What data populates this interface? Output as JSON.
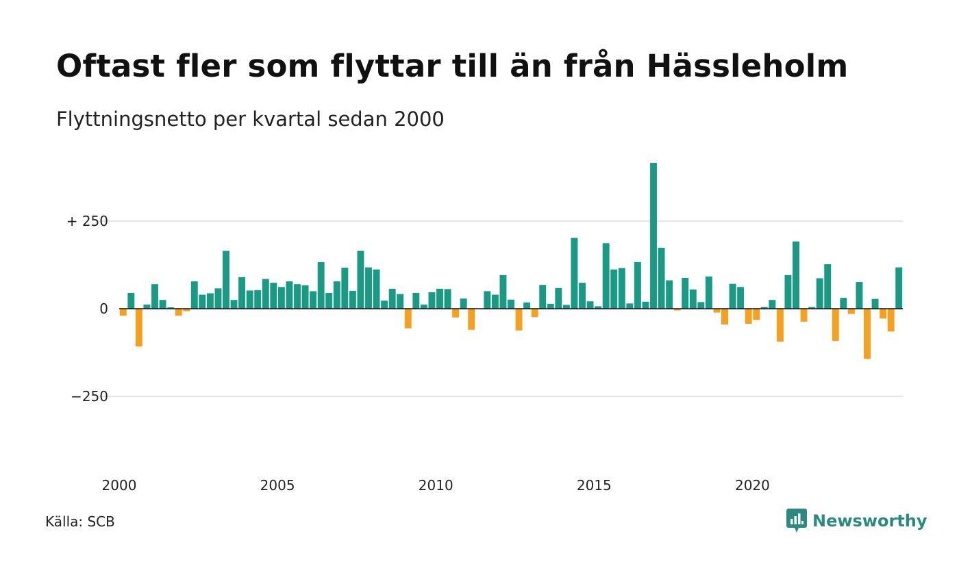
{
  "title": "Oftast fler som flyttar till än från Hässleholm",
  "subtitle": "Flyttningsnetto per kvartal sedan 2000",
  "source": "Källa: SCB",
  "brand": {
    "name": "Newsworthy",
    "icon": "newsworthy-logo-icon"
  },
  "colors": {
    "positive": "#1a9985",
    "negative": "#f5a01f",
    "grid": "#e3e3e3",
    "zero_line": "#111111"
  },
  "chart_data": {
    "type": "bar",
    "x_start": "2000 Q1",
    "x_tick_labels": [
      "2000",
      "2005",
      "2010",
      "2015",
      "2020"
    ],
    "y_tick_labels": [
      "+ 250",
      "0",
      "−250"
    ],
    "y_ticks": [
      250,
      0,
      -250
    ],
    "ylim": [
      -450,
      420
    ],
    "grid": true,
    "values": [
      -20,
      45,
      -108,
      12,
      70,
      25,
      4,
      -20,
      -7,
      78,
      40,
      44,
      58,
      165,
      25,
      90,
      52,
      53,
      85,
      74,
      62,
      78,
      70,
      67,
      50,
      133,
      45,
      78,
      117,
      51,
      165,
      118,
      112,
      23,
      57,
      42,
      -56,
      45,
      12,
      47,
      57,
      56,
      -25,
      29,
      -60,
      0,
      50,
      40,
      96,
      26,
      -62,
      18,
      -24,
      68,
      14,
      59,
      11,
      202,
      74,
      21,
      7,
      187,
      112,
      116,
      15,
      133,
      20,
      416,
      174,
      81,
      -5,
      88,
      55,
      19,
      92,
      -11,
      -45,
      71,
      62,
      -43,
      -32,
      5,
      25,
      -94,
      96,
      192,
      -37,
      5,
      87,
      127,
      -92,
      31,
      -15,
      76,
      -143,
      28,
      -28,
      -65,
      118
    ]
  }
}
